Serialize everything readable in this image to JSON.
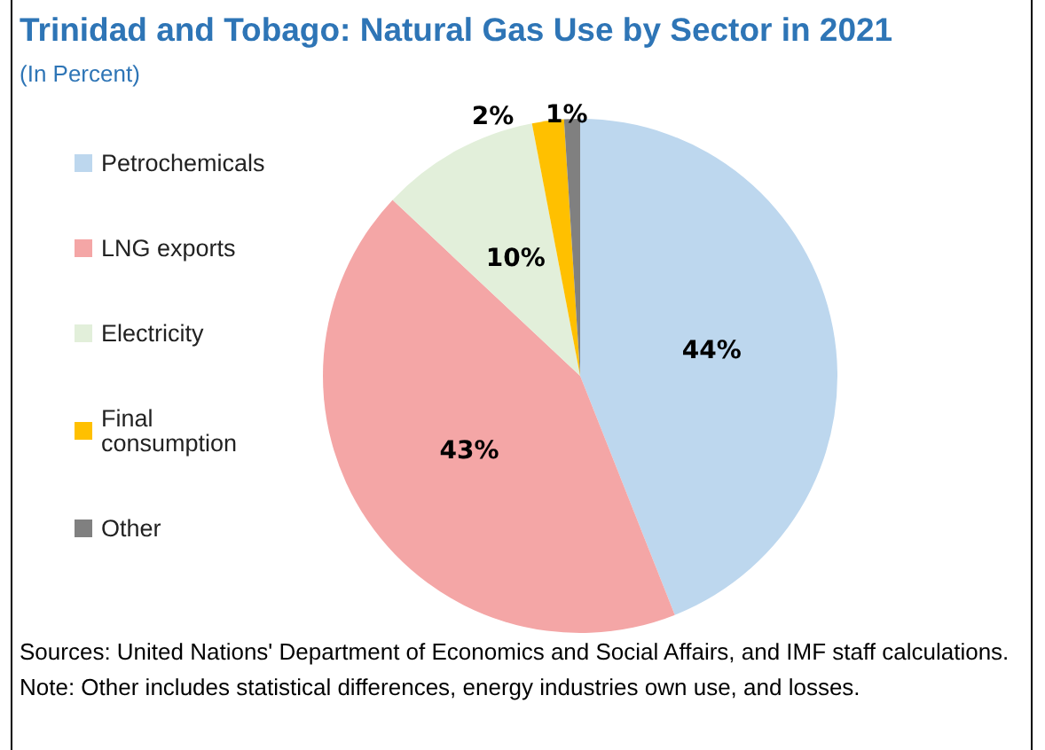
{
  "chart_data": {
    "type": "pie",
    "title": "Trinidad and Tobago: Natural Gas Use by Sector in 2021",
    "subtitle": "(In Percent)",
    "categories": [
      "Petrochemicals",
      "LNG exports",
      "Electricity",
      "Final consumption",
      "Other"
    ],
    "values": [
      44,
      43,
      10,
      2,
      1
    ],
    "colors": [
      "#bdd7ee",
      "#f4a6a6",
      "#e2efda",
      "#ffc000",
      "#808080"
    ],
    "value_labels": [
      "44%",
      "43%",
      "10%",
      "2%",
      "1%"
    ],
    "legend": "left",
    "annotations": [
      "Sources: United Nations' Department of Economics and Social Affairs, and IMF staff calculations.",
      "Note: Other includes statistical differences, energy industries own use, and losses."
    ]
  }
}
